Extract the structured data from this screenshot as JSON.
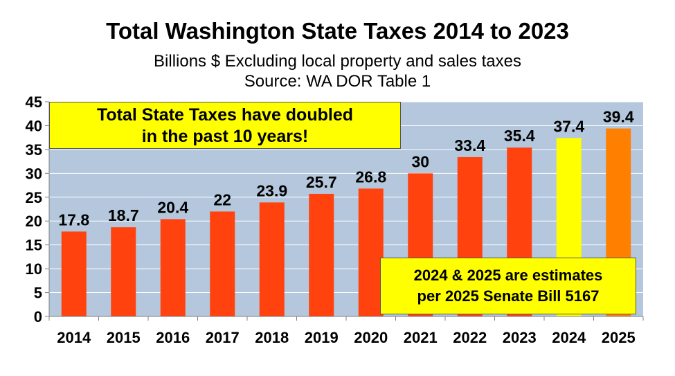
{
  "chart_data": {
    "type": "bar",
    "title": "Total Washington State Taxes 2014 to 2023",
    "subtitle": [
      "Billions $ Excluding local property and sales taxes",
      "Source: WA DOR Table 1"
    ],
    "xlabel": "",
    "ylabel": "",
    "ylim": [
      0,
      45
    ],
    "yticks": [
      0,
      5,
      10,
      15,
      20,
      25,
      30,
      35,
      40,
      45
    ],
    "grid": true,
    "categories": [
      "2014",
      "2015",
      "2016",
      "2017",
      "2018",
      "2019",
      "2020",
      "2021",
      "2022",
      "2023",
      "2024",
      "2025"
    ],
    "values": [
      17.8,
      18.7,
      20.4,
      22,
      23.9,
      25.7,
      26.8,
      30,
      33.4,
      35.4,
      37.4,
      39.4
    ],
    "value_labels": [
      "17.8",
      "18.7",
      "20.4",
      "22",
      "23.9",
      "25.7",
      "26.8",
      "30",
      "33.4",
      "35.4",
      "37.4",
      "39.4"
    ],
    "bar_colors": [
      "#ff420e",
      "#ff420e",
      "#ff420e",
      "#ff420e",
      "#ff420e",
      "#ff420e",
      "#ff420e",
      "#ff420e",
      "#ff420e",
      "#ff420e",
      "#ffff00",
      "#ff8000"
    ],
    "annotations": [
      {
        "lines": [
          "Total State Taxes have doubled",
          "in the past 10 years!"
        ]
      },
      {
        "lines": [
          "2024 & 2025 are estimates",
          "per 2025 Senate Bill 5167"
        ]
      }
    ]
  },
  "colors": {
    "plot_background": "#b4c7dc",
    "gridline": "#ffffff",
    "annotation_fill": "#ffff00"
  }
}
